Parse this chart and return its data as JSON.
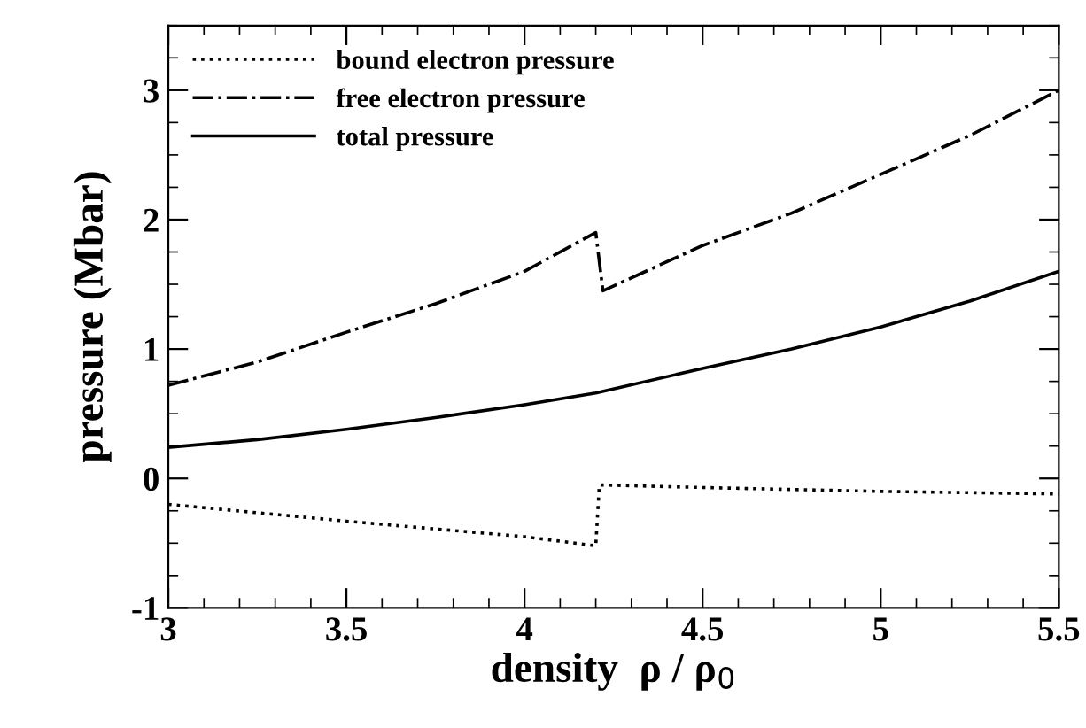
{
  "chart_data": {
    "type": "line",
    "xlabel": "density  ρ / ρ$_{0}$",
    "ylabel": "pressure (Mbar)",
    "xlim": [
      3,
      5.5
    ],
    "ylim": [
      -1,
      3.5
    ],
    "xticks": [
      3,
      3.5,
      4,
      4.5,
      5,
      5.5
    ],
    "yticks": [
      -1,
      0,
      1,
      2,
      3
    ],
    "grid": false,
    "legend": "top left",
    "series": [
      {
        "name": "bound electron pressure",
        "color": "#000000",
        "line_style": "dotted",
        "x": [
          3,
          3.5,
          4,
          4.2,
          4.21,
          4.5,
          5,
          5.5
        ],
        "values": [
          -0.2,
          -0.33,
          -0.45,
          -0.52,
          -0.05,
          -0.07,
          -0.1,
          -0.12
        ]
      },
      {
        "name": "free electron pressure",
        "color": "#000000",
        "line_style": "dashdot",
        "x": [
          3,
          3.25,
          3.5,
          3.75,
          4,
          4.2,
          4.22,
          4.5,
          4.75,
          5,
          5.25,
          5.5
        ],
        "values": [
          0.72,
          0.9,
          1.13,
          1.35,
          1.6,
          1.9,
          1.45,
          1.8,
          2.05,
          2.35,
          2.65,
          3.0
        ]
      },
      {
        "name": "total pressure",
        "color": "#000000",
        "line_style": "solid",
        "x": [
          3,
          3.25,
          3.5,
          3.75,
          4,
          4.2,
          4.5,
          4.75,
          5,
          5.25,
          5.5
        ],
        "values": [
          0.24,
          0.3,
          0.38,
          0.47,
          0.57,
          0.66,
          0.85,
          1.0,
          1.17,
          1.37,
          1.6
        ]
      }
    ]
  }
}
